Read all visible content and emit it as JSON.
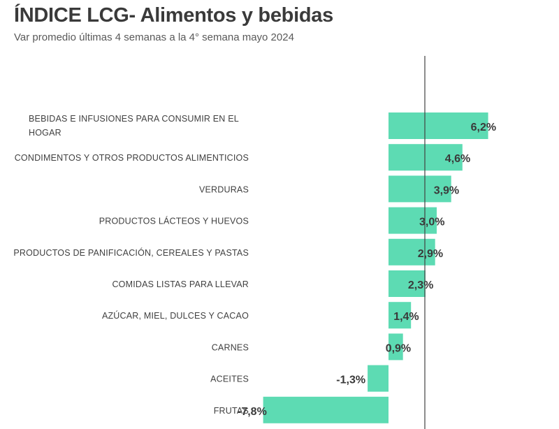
{
  "title": "ÍNDICE LCG- Alimentos y bebidas",
  "subtitle": "Var promedio últimas 4 semanas a la 4° semana mayo 2024",
  "colors": {
    "bar": "#5ddbb3",
    "axis": "#404040",
    "text": "#404040"
  },
  "chart_data": {
    "type": "bar",
    "orientation": "horizontal",
    "categories": [
      "BEBIDAS E INFUSIONES PARA CONSUMIR EN EL HOGAR",
      "CONDIMENTOS Y OTROS PRODUCTOS ALIMENTICIOS",
      "VERDURAS",
      "PRODUCTOS LÁCTEOS Y HUEVOS",
      "PRODUCTOS DE PANIFICACIÓN, CEREALES Y PASTAS",
      "COMIDAS LISTAS PARA LLEVAR",
      "AZÚCAR, MIEL, DULCES Y CACAO",
      "CARNES",
      "ACEITES",
      "FRUTAS"
    ],
    "values": [
      6.2,
      4.6,
      3.9,
      3.0,
      2.9,
      2.3,
      1.4,
      0.9,
      -1.3,
      -7.8
    ],
    "value_labels": [
      "6,2%",
      "4,6%",
      "3,9%",
      "3,0%",
      "2,9%",
      "2,3%",
      "1,4%",
      "0,9%",
      "-1,3%",
      "-7,8%"
    ],
    "title": "ÍNDICE LCG- Alimentos y bebidas",
    "subtitle": "Var promedio últimas 4 semanas a la 4° semana mayo 2024",
    "xlabel": "",
    "ylabel": "",
    "grid": false,
    "legend": "none"
  }
}
